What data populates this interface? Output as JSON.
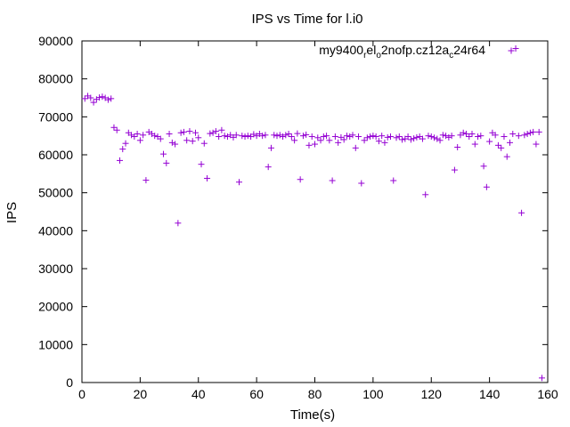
{
  "chart_data": {
    "type": "scatter",
    "title": "IPS vs Time for l.i0",
    "xlabel": "Time(s)",
    "ylabel": "IPS",
    "xlim": [
      0,
      160
    ],
    "ylim": [
      0,
      90000
    ],
    "x_ticks": [
      "0",
      "20",
      "40",
      "60",
      "80",
      "100",
      "120",
      "140",
      "160"
    ],
    "y_ticks": [
      "0",
      "10000",
      "20000",
      "30000",
      "40000",
      "50000",
      "60000",
      "70000",
      "80000",
      "90000"
    ],
    "grid": false,
    "legend_position": "top-right",
    "marker": "+",
    "color": "#9400d3",
    "series": [
      {
        "name": "my9400_rel_o2nofp.cz12a_c24r64",
        "name_parts": [
          "my9400",
          "r",
          "el",
          "o",
          "2nofp.cz12a",
          "c",
          "24r64"
        ],
        "points": [
          [
            1,
            74800
          ],
          [
            2,
            75500
          ],
          [
            3,
            75000
          ],
          [
            4,
            73800
          ],
          [
            5,
            74600
          ],
          [
            6,
            75100
          ],
          [
            7,
            75300
          ],
          [
            8,
            75000
          ],
          [
            9,
            74500
          ],
          [
            10,
            74800
          ],
          [
            11,
            67200
          ],
          [
            12,
            66500
          ],
          [
            13,
            58500
          ],
          [
            14,
            61500
          ],
          [
            15,
            63000
          ],
          [
            16,
            65800
          ],
          [
            17,
            65200
          ],
          [
            18,
            64800
          ],
          [
            19,
            65500
          ],
          [
            20,
            63800
          ],
          [
            21,
            65200
          ],
          [
            22,
            53300
          ],
          [
            23,
            66000
          ],
          [
            24,
            65500
          ],
          [
            25,
            65000
          ],
          [
            26,
            64800
          ],
          [
            27,
            64200
          ],
          [
            28,
            60200
          ],
          [
            29,
            57800
          ],
          [
            30,
            65500
          ],
          [
            31,
            63200
          ],
          [
            32,
            62800
          ],
          [
            33,
            42000
          ],
          [
            34,
            65800
          ],
          [
            35,
            66000
          ],
          [
            36,
            63800
          ],
          [
            37,
            66200
          ],
          [
            38,
            63600
          ],
          [
            39,
            65800
          ],
          [
            40,
            64500
          ],
          [
            41,
            57500
          ],
          [
            42,
            63000
          ],
          [
            43,
            53800
          ],
          [
            44,
            65600
          ],
          [
            45,
            65800
          ],
          [
            46,
            66200
          ],
          [
            47,
            64800
          ],
          [
            48,
            66500
          ],
          [
            49,
            65000
          ],
          [
            50,
            64800
          ],
          [
            51,
            65200
          ],
          [
            52,
            64600
          ],
          [
            53,
            65200
          ],
          [
            54,
            52800
          ],
          [
            55,
            65000
          ],
          [
            56,
            64800
          ],
          [
            57,
            65000
          ],
          [
            58,
            64800
          ],
          [
            59,
            65400
          ],
          [
            60,
            65000
          ],
          [
            61,
            65500
          ],
          [
            62,
            65000
          ],
          [
            63,
            65200
          ],
          [
            64,
            56800
          ],
          [
            65,
            61800
          ],
          [
            66,
            65200
          ],
          [
            67,
            65000
          ],
          [
            68,
            65200
          ],
          [
            69,
            64800
          ],
          [
            70,
            65200
          ],
          [
            71,
            65500
          ],
          [
            72,
            64800
          ],
          [
            73,
            63800
          ],
          [
            74,
            65600
          ],
          [
            75,
            53500
          ],
          [
            76,
            65000
          ],
          [
            77,
            65300
          ],
          [
            78,
            62500
          ],
          [
            79,
            64800
          ],
          [
            80,
            62800
          ],
          [
            81,
            64500
          ],
          [
            82,
            63800
          ],
          [
            83,
            64800
          ],
          [
            84,
            65000
          ],
          [
            85,
            63800
          ],
          [
            86,
            53200
          ],
          [
            87,
            64800
          ],
          [
            88,
            63200
          ],
          [
            89,
            64600
          ],
          [
            90,
            64000
          ],
          [
            91,
            65000
          ],
          [
            92,
            64800
          ],
          [
            93,
            65200
          ],
          [
            94,
            61800
          ],
          [
            95,
            64800
          ],
          [
            96,
            52500
          ],
          [
            97,
            63800
          ],
          [
            98,
            64500
          ],
          [
            99,
            64800
          ],
          [
            100,
            65000
          ],
          [
            101,
            64800
          ],
          [
            102,
            63600
          ],
          [
            103,
            65000
          ],
          [
            104,
            63200
          ],
          [
            105,
            64600
          ],
          [
            106,
            64800
          ],
          [
            107,
            53200
          ],
          [
            108,
            64500
          ],
          [
            109,
            64800
          ],
          [
            110,
            64000
          ],
          [
            111,
            64200
          ],
          [
            112,
            64800
          ],
          [
            113,
            64000
          ],
          [
            114,
            64300
          ],
          [
            115,
            64600
          ],
          [
            116,
            64800
          ],
          [
            117,
            64200
          ],
          [
            118,
            49500
          ],
          [
            119,
            65000
          ],
          [
            120,
            64800
          ],
          [
            121,
            64500
          ],
          [
            122,
            64200
          ],
          [
            123,
            63800
          ],
          [
            124,
            65200
          ],
          [
            125,
            65000
          ],
          [
            126,
            64600
          ],
          [
            127,
            65000
          ],
          [
            128,
            56000
          ],
          [
            129,
            62000
          ],
          [
            130,
            65200
          ],
          [
            131,
            65800
          ],
          [
            132,
            65500
          ],
          [
            133,
            64800
          ],
          [
            134,
            65500
          ],
          [
            135,
            62800
          ],
          [
            136,
            64800
          ],
          [
            137,
            65000
          ],
          [
            138,
            57000
          ],
          [
            139,
            51500
          ],
          [
            140,
            63500
          ],
          [
            141,
            65800
          ],
          [
            142,
            65200
          ],
          [
            143,
            62500
          ],
          [
            144,
            61800
          ],
          [
            145,
            64800
          ],
          [
            146,
            59500
          ],
          [
            147,
            63200
          ],
          [
            148,
            65500
          ],
          [
            149,
            88000
          ],
          [
            150,
            65000
          ],
          [
            151,
            44700
          ],
          [
            152,
            65200
          ],
          [
            153,
            65500
          ],
          [
            154,
            65800
          ],
          [
            155,
            66000
          ],
          [
            156,
            62800
          ],
          [
            157,
            66000
          ],
          [
            158,
            1200
          ]
        ]
      }
    ]
  }
}
